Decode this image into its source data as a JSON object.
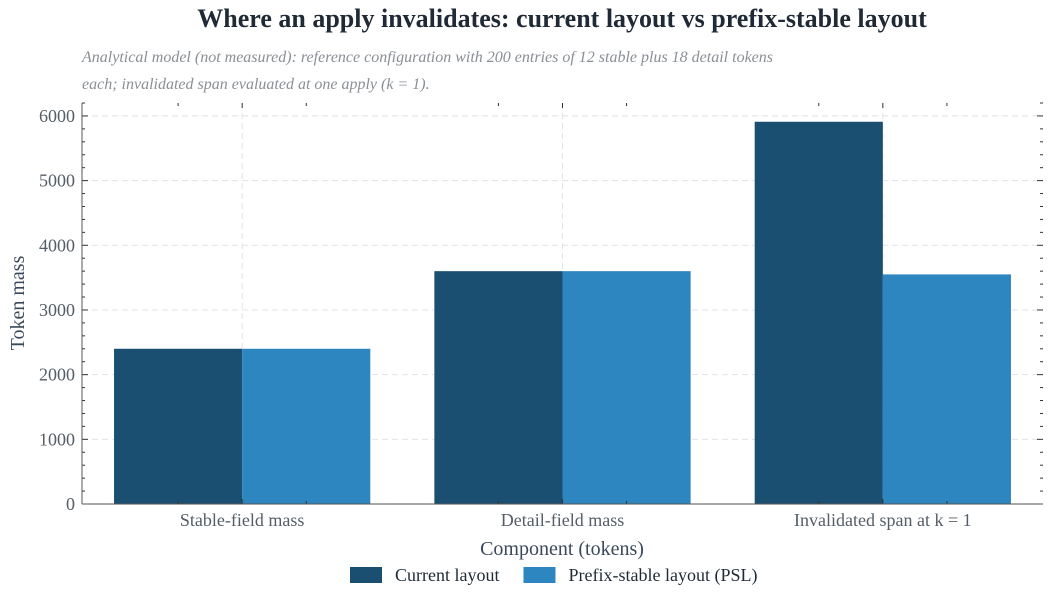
{
  "chart_data": {
    "type": "bar",
    "title": "Where an apply invalidates: current layout vs prefix-stable layout",
    "subtitle_lines": [
      "Analytical model (not measured): reference configuration with 200 entries of 12 stable plus 18 detail tokens",
      "each; invalidated span evaluated at one apply (k = 1)."
    ],
    "xlabel": "Component (tokens)",
    "ylabel": "Token mass",
    "categories": [
      "Stable-field mass",
      "Detail-field mass",
      "Invalidated span at k = 1"
    ],
    "series": [
      {
        "name": "Current layout",
        "color": "#1b4f72",
        "values": [
          2400,
          3600,
          5910
        ]
      },
      {
        "name": "Prefix-stable layout (PSL)",
        "color": "#2e86c1",
        "values": [
          2400,
          3600,
          3550
        ]
      }
    ],
    "ylim": [
      0,
      6200
    ],
    "yticks": [
      0,
      1000,
      2000,
      3000,
      4000,
      5000,
      6000
    ],
    "grid": true,
    "legend_position": "bottom-center"
  }
}
